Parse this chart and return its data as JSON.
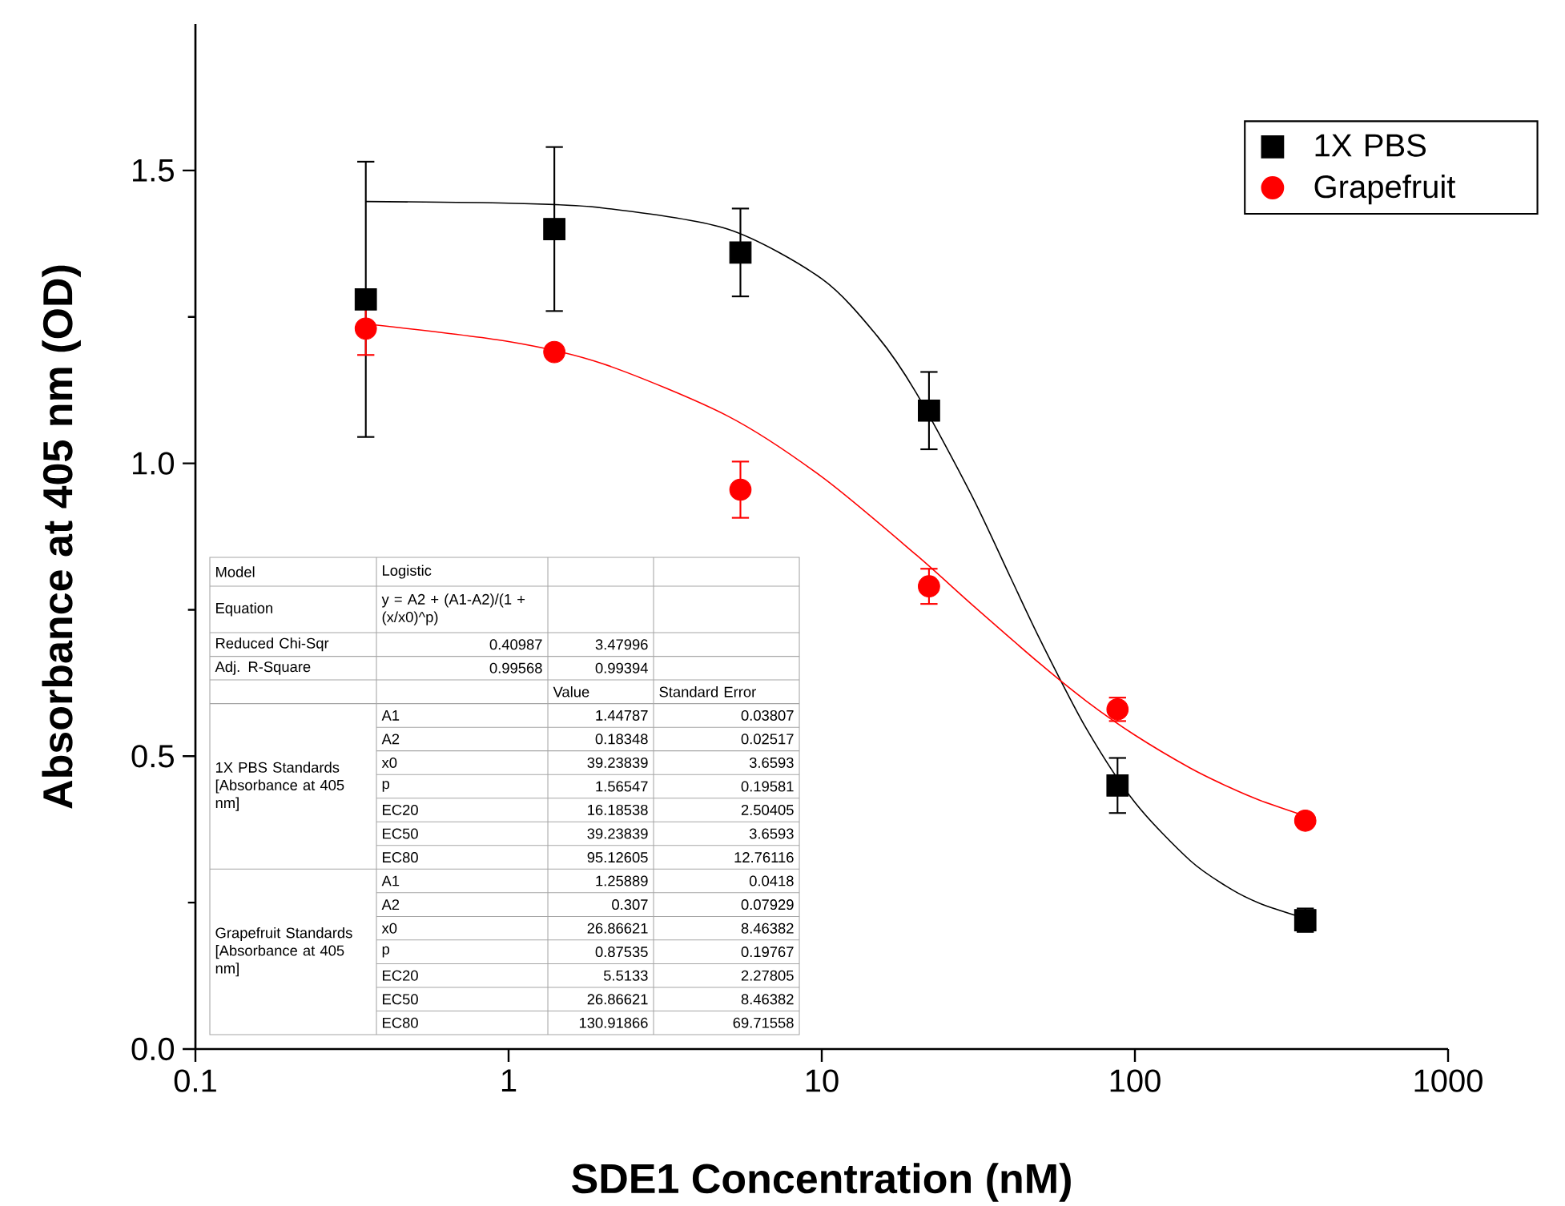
{
  "chart_data": {
    "type": "scatter",
    "xlabel": "SDE1 Concentration (nM)",
    "ylabel": "Absorbance at 405 nm (OD)",
    "log": "x",
    "xlim": [
      0.1,
      1000
    ],
    "xticks": [
      0.1,
      1,
      10,
      100,
      1000
    ],
    "ylim": [
      0,
      1.75
    ],
    "yticks": [
      {
        "value": 0,
        "label": "0.0"
      },
      {
        "value": 0.5,
        "label": "0.5"
      },
      {
        "value": 1,
        "label": "1.0"
      },
      {
        "value": 1.5,
        "label": "1.5"
      }
    ],
    "legend": "top right",
    "series": [
      {
        "name": "1X PBS",
        "marker": "square",
        "color": "#000000",
        "x": [
          0.35,
          1.4,
          5.5,
          22,
          88,
          350
        ],
        "values": [
          1.28,
          1.4,
          1.36,
          1.09,
          0.45,
          0.22
        ],
        "errors": [
          0.235,
          0.14,
          0.075,
          0.066,
          0.047,
          0.02
        ]
      },
      {
        "name": "Grapefruit",
        "marker": "circle",
        "color": "#ff0000",
        "x": [
          0.35,
          1.4,
          5.5,
          22,
          88,
          350
        ],
        "values": [
          1.23,
          1.19,
          0.955,
          0.79,
          0.58,
          0.39
        ],
        "errors": [
          0.045,
          null,
          0.048,
          0.03,
          0.02,
          0.01
        ]
      },
      {
        "type": "line",
        "marker": "none",
        "color": "#000000",
        "x": [
          0.35,
          1,
          2,
          5,
          10,
          15,
          20,
          30,
          40,
          50,
          70,
          100,
          150,
          200,
          250,
          350
        ],
        "values": [
          1.447,
          1.444,
          1.436,
          1.4,
          1.315,
          1.218,
          1.121,
          0.947,
          0.806,
          0.697,
          0.547,
          0.421,
          0.322,
          0.275,
          0.249,
          0.223
        ]
      },
      {
        "type": "line",
        "marker": "none",
        "color": "#ff0000",
        "x": [
          0.35,
          1,
          2,
          5,
          10,
          20,
          30,
          50,
          70,
          100,
          150,
          200,
          250,
          350
        ],
        "values": [
          1.238,
          1.208,
          1.17,
          1.081,
          0.977,
          0.844,
          0.76,
          0.657,
          0.594,
          0.536,
          0.48,
          0.447,
          0.425,
          0.398
        ]
      }
    ],
    "annotations": [
      "Model",
      "Logistic",
      "Equation",
      "y = A2 + (A1-A2)/(1 + (x/x0)^p)",
      "Reduced Chi-Sqr",
      "0.40987",
      "3.47996",
      "Adj. R-Square",
      "0.99568",
      "0.99394",
      "Value",
      "Standard Error",
      "1X PBS Standards [Absorbance at 405 nm]",
      "A1",
      "1.44787",
      "0.03807",
      "A2",
      "0.18348",
      "0.02517",
      "x0",
      "39.23839",
      "3.6593",
      "p",
      "1.56547",
      "0.19581",
      "EC20",
      "16.18538",
      "2.50405",
      "EC50",
      "39.23839",
      "3.6593",
      "EC80",
      "95.12605",
      "12.76116",
      "Grapefruit Standards [Absorbance at 405 nm]",
      "A1",
      "1.25889",
      "0.0418",
      "A2",
      "0.307",
      "0.07929",
      "x0",
      "26.86621",
      "8.46382",
      "p",
      "0.87535",
      "0.19767",
      "EC20",
      "5.5133",
      "2.27805",
      "EC50",
      "26.86621",
      "8.46382",
      "EC80",
      "130.91866",
      "69.71558"
    ]
  }
}
